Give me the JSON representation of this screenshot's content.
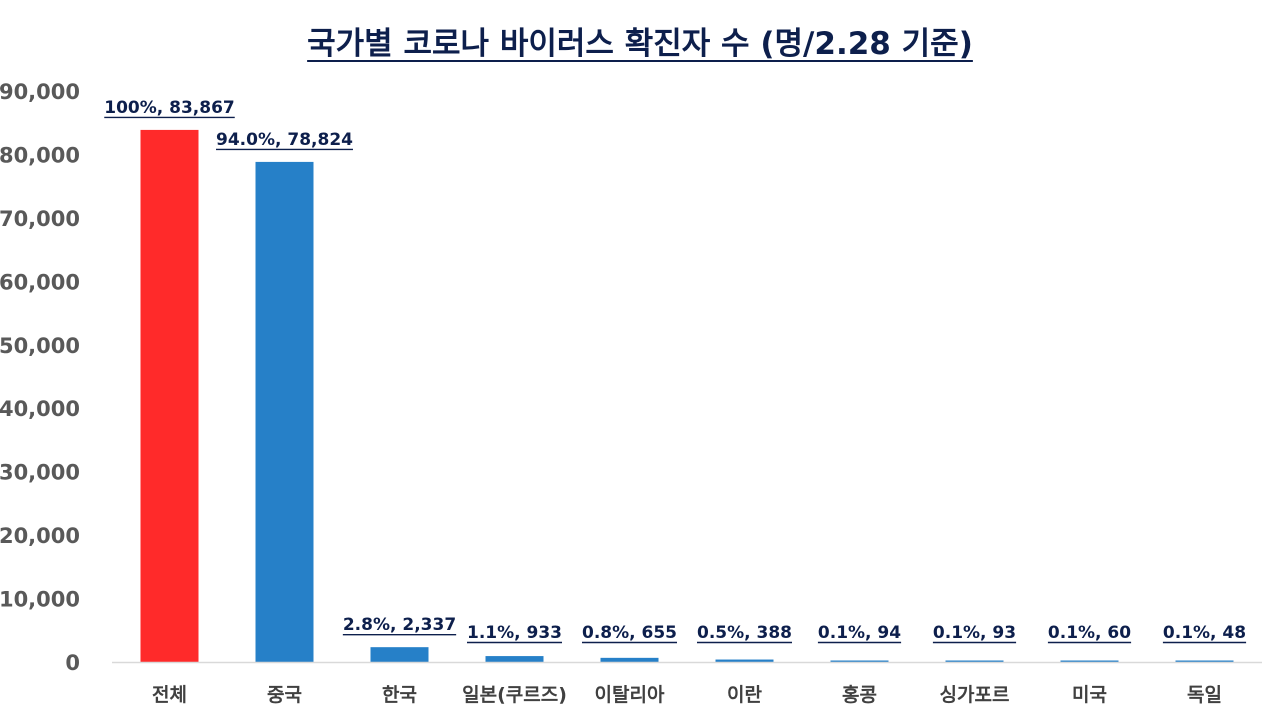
{
  "chart_data": {
    "type": "bar",
    "title": "국가별 코로나 바이러스 확진자 수 (명/2.28 기준)",
    "xlabel": "",
    "ylabel": "",
    "ylim": [
      0,
      90000
    ],
    "y_ticks": [
      0,
      10000,
      20000,
      30000,
      40000,
      50000,
      60000,
      70000,
      80000,
      90000
    ],
    "y_tick_labels": [
      "0",
      "10,000",
      "20,000",
      "30,000",
      "40,000",
      "50,000",
      "60,000",
      "70,000",
      "80,000",
      "90,000"
    ],
    "grid": false,
    "categories": [
      "전체",
      "중국",
      "한국",
      "일본(쿠르즈)",
      "이탈리아",
      "이란",
      "홍콩",
      "싱가포르",
      "미국",
      "독일"
    ],
    "values": [
      83867,
      78824,
      2337,
      933,
      655,
      388,
      94,
      93,
      60,
      48
    ],
    "data_labels": [
      "100%, 83,867",
      "94.0%, 78,824",
      "2.8%, 2,337",
      "1.1%, 933",
      "0.8%, 655",
      "0.5%, 388",
      "0.1%, 94",
      "0.1%, 93",
      "0.1%, 60",
      "0.1%, 48"
    ],
    "bar_colors": [
      "#ff2a2a",
      "#2680c8",
      "#2680c8",
      "#2680c8",
      "#2680c8",
      "#2680c8",
      "#2680c8",
      "#2680c8",
      "#2680c8",
      "#2680c8"
    ]
  }
}
